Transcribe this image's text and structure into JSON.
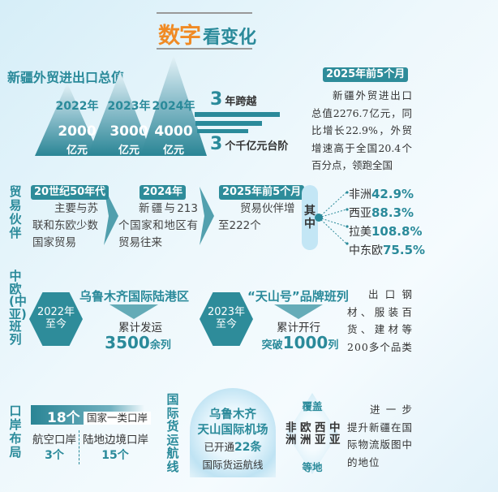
{
  "title": {
    "part1": "数字",
    "part2": "看变化"
  },
  "trade": {
    "heading": "新疆外贸进出口总值",
    "mountains": [
      {
        "year": "2022年",
        "value": "2000",
        "unit": "亿元"
      },
      {
        "year": "2023年",
        "value": "3000",
        "unit": "亿元"
      },
      {
        "year": "2024年",
        "value": "4000",
        "unit": "亿元"
      }
    ],
    "leap1_num": "3",
    "leap1_text": "年跨越",
    "leap2_num": "3",
    "leap2_text": "个千亿元台阶",
    "side_tag": "2025年前5个月",
    "side_text": "新疆外贸进出口总值2276.7亿元，同比增长22.9%，外贸增速高于全国20.4个百分点，领跑全国"
  },
  "partners": {
    "label": "贸易伙伴",
    "steps": [
      {
        "tag": "20世纪50年代",
        "text": "主要与苏联和东欧少数国家贸易"
      },
      {
        "tag": "2024年",
        "text": "新疆与213个国家和地区有贸易往来"
      },
      {
        "tag": "2025年前5个月",
        "text": "贸易伙伴增至222个"
      }
    ],
    "among": "其中",
    "regions": [
      {
        "name": "非洲",
        "value": "42.9%"
      },
      {
        "name": "西亚",
        "value": "88.3%"
      },
      {
        "name": "拉美",
        "value": "108.8%"
      },
      {
        "name": "中东欧",
        "value": "75.5%"
      }
    ]
  },
  "trains": {
    "label": "中欧(中亚)班列",
    "blocks": [
      {
        "since_year": "2022年",
        "since": "至今",
        "title": "乌鲁木齐国际陆港区",
        "desc": "累计发运",
        "prefix": "",
        "value": "3500",
        "suffix": "余列"
      },
      {
        "since_year": "2023年",
        "since": "至今",
        "title": "“天山号”品牌班列",
        "desc": "累计开行",
        "prefix": "突破",
        "value": "1000",
        "suffix": "列"
      }
    ],
    "side_text": "出口钢材、服装百货、建材等200多个品类"
  },
  "ports": {
    "label": "口岸布局",
    "total": "18个",
    "total_label": "国家一类口岸",
    "items": [
      {
        "name": "航空口岸",
        "count": "3个"
      },
      {
        "name": "陆地边境口岸",
        "count": "15个"
      }
    ]
  },
  "air": {
    "label": "国际货运航线",
    "airport_l1": "乌鲁木齐",
    "airport_l2": "天山国际机场",
    "opened": "已开通",
    "routes": "22条",
    "routes_label": "国际货运航线",
    "cover": "覆盖",
    "regions": [
      "非洲",
      "欧洲",
      "西亚",
      "中亚"
    ],
    "etc": "等地",
    "side_text": "进一步提升新疆在国际物流版图中的地位"
  },
  "colors": {
    "teal": "#2a8a9a",
    "orange": "#f08a24"
  }
}
